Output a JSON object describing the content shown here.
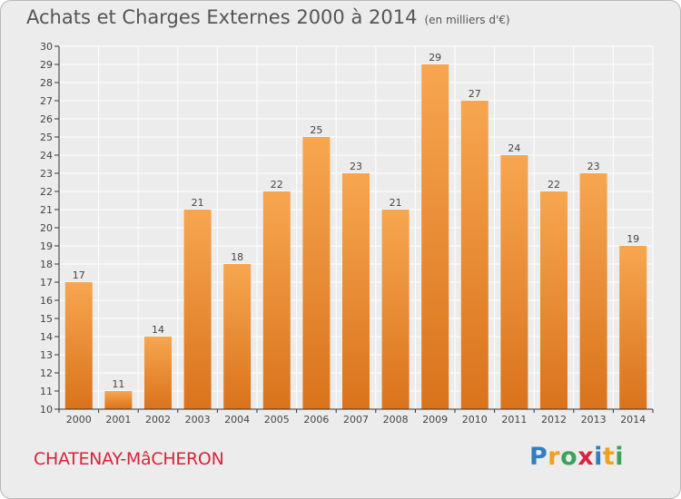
{
  "header": {
    "title": "Achats et Charges Externes 2000 à 2014",
    "unit": "(en milliers d'€)"
  },
  "commune": "CHATENAY-MâCHERON",
  "logo": {
    "letters": [
      "P",
      "r",
      "o",
      "x",
      "i",
      "t",
      "i"
    ],
    "colors": [
      "#2f7fc1",
      "#f0a020",
      "#3aa35a",
      "#d7243d",
      "#2f7fc1",
      "#f0a020",
      "#3aa35a"
    ]
  },
  "colors": {
    "bar_top": "#f7a650",
    "bar_bottom": "#d9731c",
    "axis": "#333333",
    "grid": "#ffffff",
    "label": "#444444"
  },
  "chart_data": {
    "type": "bar",
    "title": "Achats et Charges Externes 2000 à 2014",
    "subtitle": "(en milliers d'€)",
    "categories": [
      "2000",
      "2001",
      "2002",
      "2003",
      "2004",
      "2005",
      "2006",
      "2007",
      "2008",
      "2009",
      "2010",
      "2011",
      "2012",
      "2013",
      "2014"
    ],
    "values": [
      17,
      11,
      14,
      21,
      18,
      22,
      25,
      23,
      21,
      29,
      27,
      24,
      22,
      23,
      19
    ],
    "ylim": [
      10,
      30
    ],
    "yticks": [
      10,
      11,
      12,
      13,
      14,
      15,
      16,
      17,
      18,
      19,
      20,
      21,
      22,
      23,
      24,
      25,
      26,
      27,
      28,
      29,
      30
    ],
    "grid": true,
    "data_labels": true
  }
}
